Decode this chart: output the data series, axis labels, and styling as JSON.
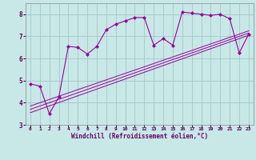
{
  "background_color": "#c8e8e8",
  "plot_bg_color": "#c8e8e8",
  "line_color": "#990099",
  "grid_color": "#a8cccc",
  "xlabel": "Windchill (Refroidissement éolien,°C)",
  "xlabel_color": "#660066",
  "xlim": [
    -0.5,
    23.5
  ],
  "ylim": [
    3.0,
    8.5
  ],
  "yticks": [
    3,
    4,
    5,
    6,
    7,
    8
  ],
  "xticks": [
    0,
    1,
    2,
    3,
    4,
    5,
    6,
    7,
    8,
    9,
    10,
    11,
    12,
    13,
    14,
    15,
    16,
    17,
    18,
    19,
    20,
    21,
    22,
    23
  ],
  "series_main": {
    "x": [
      0,
      1,
      2,
      3,
      4,
      5,
      6,
      7,
      8,
      9,
      10,
      11,
      12,
      13,
      14,
      15,
      16,
      17,
      18,
      19,
      20,
      21,
      22,
      23
    ],
    "y": [
      4.85,
      4.75,
      3.5,
      4.25,
      6.55,
      6.5,
      6.2,
      6.55,
      7.3,
      7.55,
      7.7,
      7.85,
      7.85,
      6.6,
      6.9,
      6.6,
      8.1,
      8.05,
      8.0,
      7.95,
      8.0,
      7.8,
      6.25,
      7.1
    ]
  },
  "lines": [
    {
      "x": [
        0,
        23
      ],
      "y": [
        3.55,
        7.05
      ]
    },
    {
      "x": [
        0,
        23
      ],
      "y": [
        3.7,
        7.15
      ]
    },
    {
      "x": [
        0,
        23
      ],
      "y": [
        3.85,
        7.25
      ]
    }
  ]
}
